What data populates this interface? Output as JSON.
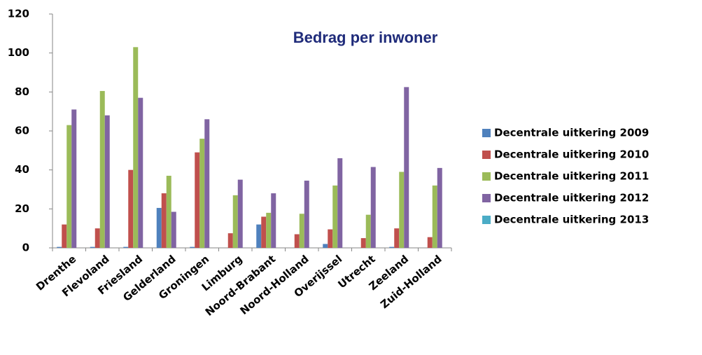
{
  "chart_data": {
    "type": "bar",
    "title": "Bedrag per inwoner",
    "categories": [
      "Drenthe",
      "Flevoland",
      "Friesland",
      "Gelderland",
      "Groningen",
      "Limburg",
      "Noord-Brabant",
      "Noord-Holland",
      "Overijssel",
      "Utrecht",
      "Zeeland",
      "Zuid-Holland"
    ],
    "series": [
      {
        "name": "Decentrale uitkering 2009",
        "color": "#4f81bd",
        "values": [
          0.5,
          0.5,
          0.5,
          20.5,
          0.5,
          0,
          12,
          0,
          2,
          0,
          0.5,
          0
        ]
      },
      {
        "name": "Decentrale uitkering 2010",
        "color": "#c0504d",
        "values": [
          12,
          10,
          40,
          28,
          49,
          7.5,
          16,
          7,
          9.5,
          5,
          10,
          5.5
        ]
      },
      {
        "name": "Decentrale uitkering 2011",
        "color": "#9bbb59",
        "values": [
          63,
          80.5,
          103,
          37,
          56,
          27,
          18,
          17.5,
          32,
          17,
          39,
          32
        ]
      },
      {
        "name": "Decentrale uitkering 2012",
        "color": "#8064a2",
        "values": [
          71,
          68,
          77,
          18.5,
          66,
          35,
          28,
          34.5,
          46,
          41.5,
          82.5,
          41
        ]
      },
      {
        "name": "Decentrale uitkering 2013",
        "color": "#4bacc6",
        "values": [
          0,
          0,
          0,
          0,
          0,
          0,
          0,
          0,
          0,
          0,
          0,
          0
        ]
      }
    ],
    "ylim": [
      0,
      120
    ],
    "yticks": [
      0,
      20,
      40,
      60,
      80,
      100,
      120
    ],
    "grid": false,
    "legend": "right"
  }
}
